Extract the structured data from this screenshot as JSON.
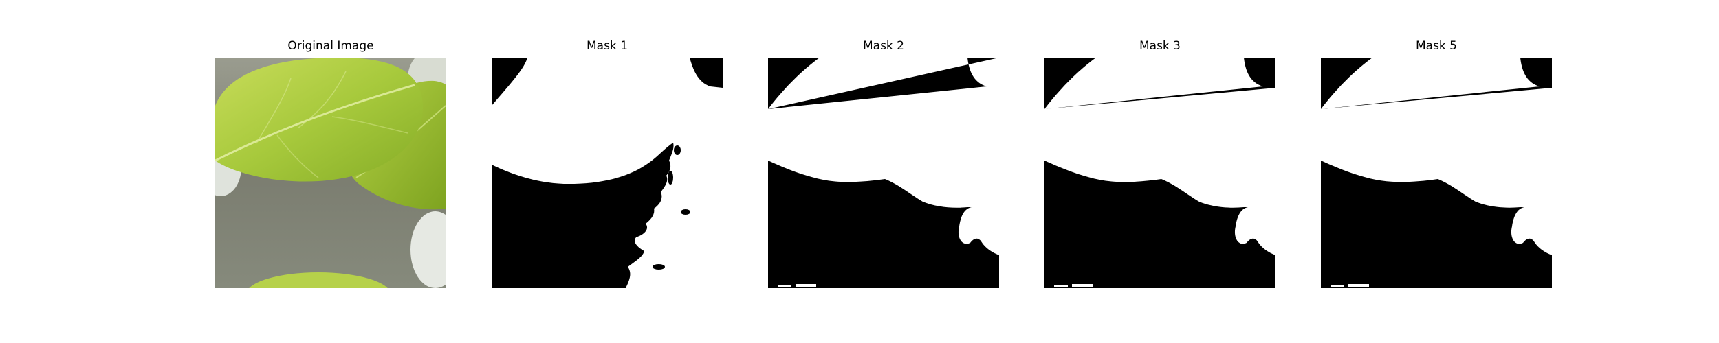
{
  "figure": {
    "panels": [
      {
        "title": "Original Image",
        "kind": "photo",
        "description_icon": "leaf-photo"
      },
      {
        "title": "Mask 1",
        "kind": "mask",
        "variant": "ragged"
      },
      {
        "title": "Mask 2",
        "kind": "mask",
        "variant": "smooth"
      },
      {
        "title": "Mask 3",
        "kind": "mask",
        "variant": "smooth"
      },
      {
        "title": "Mask 5",
        "kind": "mask",
        "variant": "smooth"
      }
    ],
    "colors": {
      "background": "#ffffff",
      "mask_foreground": "#ffffff",
      "mask_background": "#000000",
      "leaf_light": "#b7d44a",
      "leaf_mid": "#9cc133",
      "leaf_dark": "#6f9a1f",
      "ground": "#7d7f73"
    }
  }
}
